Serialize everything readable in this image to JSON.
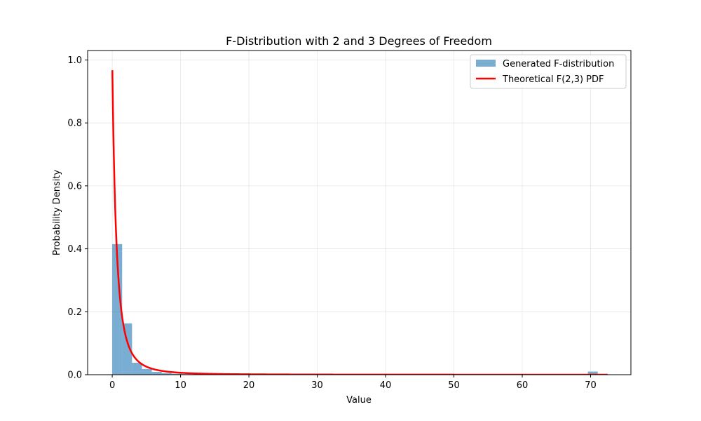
{
  "chart_data": {
    "type": "bar",
    "title": "F-Distribution with 2 and 3 Degrees of Freedom",
    "xlabel": "Value",
    "ylabel": "Probability Density",
    "xlim": [
      -3.6,
      75.9
    ],
    "ylim": [
      0,
      1.03
    ],
    "xticks": [
      0,
      10,
      20,
      30,
      40,
      50,
      60,
      70
    ],
    "yticks": [
      0.0,
      0.2,
      0.4,
      0.6,
      0.8,
      1.0
    ],
    "xtick_labels": [
      "0",
      "10",
      "20",
      "30",
      "40",
      "50",
      "60",
      "70"
    ],
    "ytick_labels": [
      "0.0",
      "0.2",
      "0.4",
      "0.6",
      "0.8",
      "1.0"
    ],
    "grid": true,
    "legend_position": "top-right",
    "histogram": {
      "name": "Generated F-distribution",
      "color": "#1f77b4",
      "opacity": 0.6,
      "bin_width": 1.45,
      "bins": [
        {
          "start": 0.0,
          "density": 0.415
        },
        {
          "start": 1.45,
          "density": 0.163
        },
        {
          "start": 2.9,
          "density": 0.038
        },
        {
          "start": 4.35,
          "density": 0.018
        },
        {
          "start": 5.8,
          "density": 0.009
        },
        {
          "start": 7.25,
          "density": 0.005
        },
        {
          "start": 8.7,
          "density": 0.003
        },
        {
          "start": 10.15,
          "density": 0.002
        },
        {
          "start": 11.6,
          "density": 0.0015
        },
        {
          "start": 13.05,
          "density": 0.001
        },
        {
          "start": 69.6,
          "density": 0.01
        }
      ]
    },
    "curve": {
      "name": "Theoretical F(2,3) PDF",
      "color": "#ff0000",
      "d1": 2,
      "d2": 3,
      "x_range": [
        0.02,
        72.5
      ]
    }
  }
}
